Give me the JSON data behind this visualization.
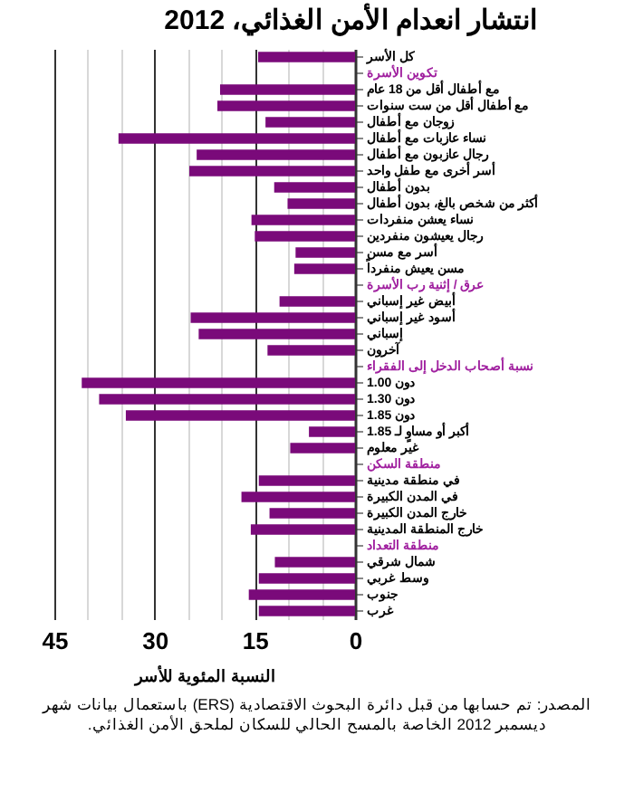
{
  "chart_data": {
    "type": "bar",
    "orientation": "horizontal",
    "title": "انتشار انعدام الأمن الغذائي، 2012",
    "xlabel": "النسبة المئوية للأسر",
    "categories": [
      "كل الأسر",
      "تكوين الأسرة",
      "مع أطفال أقل من 18 عام",
      "مع أطفال أقل من ست سنوات",
      "زوجان مع أطفال",
      "نساء عازبات مع أطفال",
      "رجال عازبون مع أطفال",
      "أسر أخرى مع طفل واحد",
      "بدون أطفال",
      "أكثر من شخص بالغ، بدون أطفال",
      "نساء يعشن منفردات",
      "رجال يعيشون منفردين",
      "أسر مع مسن",
      "مسن يعيش منفرداً",
      "عرق / إثنية رب الأسرة",
      "أبيض غير إسباني",
      "أسود غير إسباني",
      "إسباني",
      "آخرون",
      "نسبة أصحاب الدخل إلى الفقراء",
      "دون 1.00",
      "دون 1.30",
      "دون 1.85",
      "أكبر أو مساوٍ لـ 1.85",
      "غير معلوم",
      "منطقة السكن",
      "في منطقة مدينية",
      "في المدن الكبيرة",
      "خارج المدن الكبيرة",
      "خارج المنطقة المدينية",
      "منطقة التعداد",
      "شمال شرقي",
      "وسط غربي",
      "جنوب",
      "غرب"
    ],
    "series": [
      {
        "color": "#7a0a7a",
        "values": [
          14.5,
          null,
          20.2,
          20.6,
          13.4,
          35.4,
          23.7,
          24.8,
          12.1,
          10.1,
          15.5,
          15.0,
          8.9,
          9.1,
          null,
          11.3,
          24.6,
          23.4,
          13.1,
          null,
          40.9,
          38.3,
          34.3,
          6.9,
          9.7,
          null,
          14.4,
          17.0,
          12.8,
          15.6,
          null,
          12.0,
          14.4,
          15.9,
          14.4
        ]
      }
    ],
    "xlim": [
      45,
      0
    ],
    "xticks": [
      45,
      {
        "value": 40,
        "label": null
      },
      {
        "value": 35,
        "label": null
      },
      30,
      {
        "value": 25,
        "label": null
      },
      {
        "value": 20,
        "label": null
      },
      15,
      {
        "value": 10,
        "label": null
      },
      {
        "value": 5,
        "label": null
      },
      0
    ],
    "grid": "x",
    "annotations": [
      "المصدر: تم حسابها من قبل دائرة البحوث الاقتصادية (ERS) باستعمال بيانات شهر ديسمبر 2012 الخاصة بالمسح الحالي للسكان لملحق الأمن الغذائي."
    ]
  }
}
